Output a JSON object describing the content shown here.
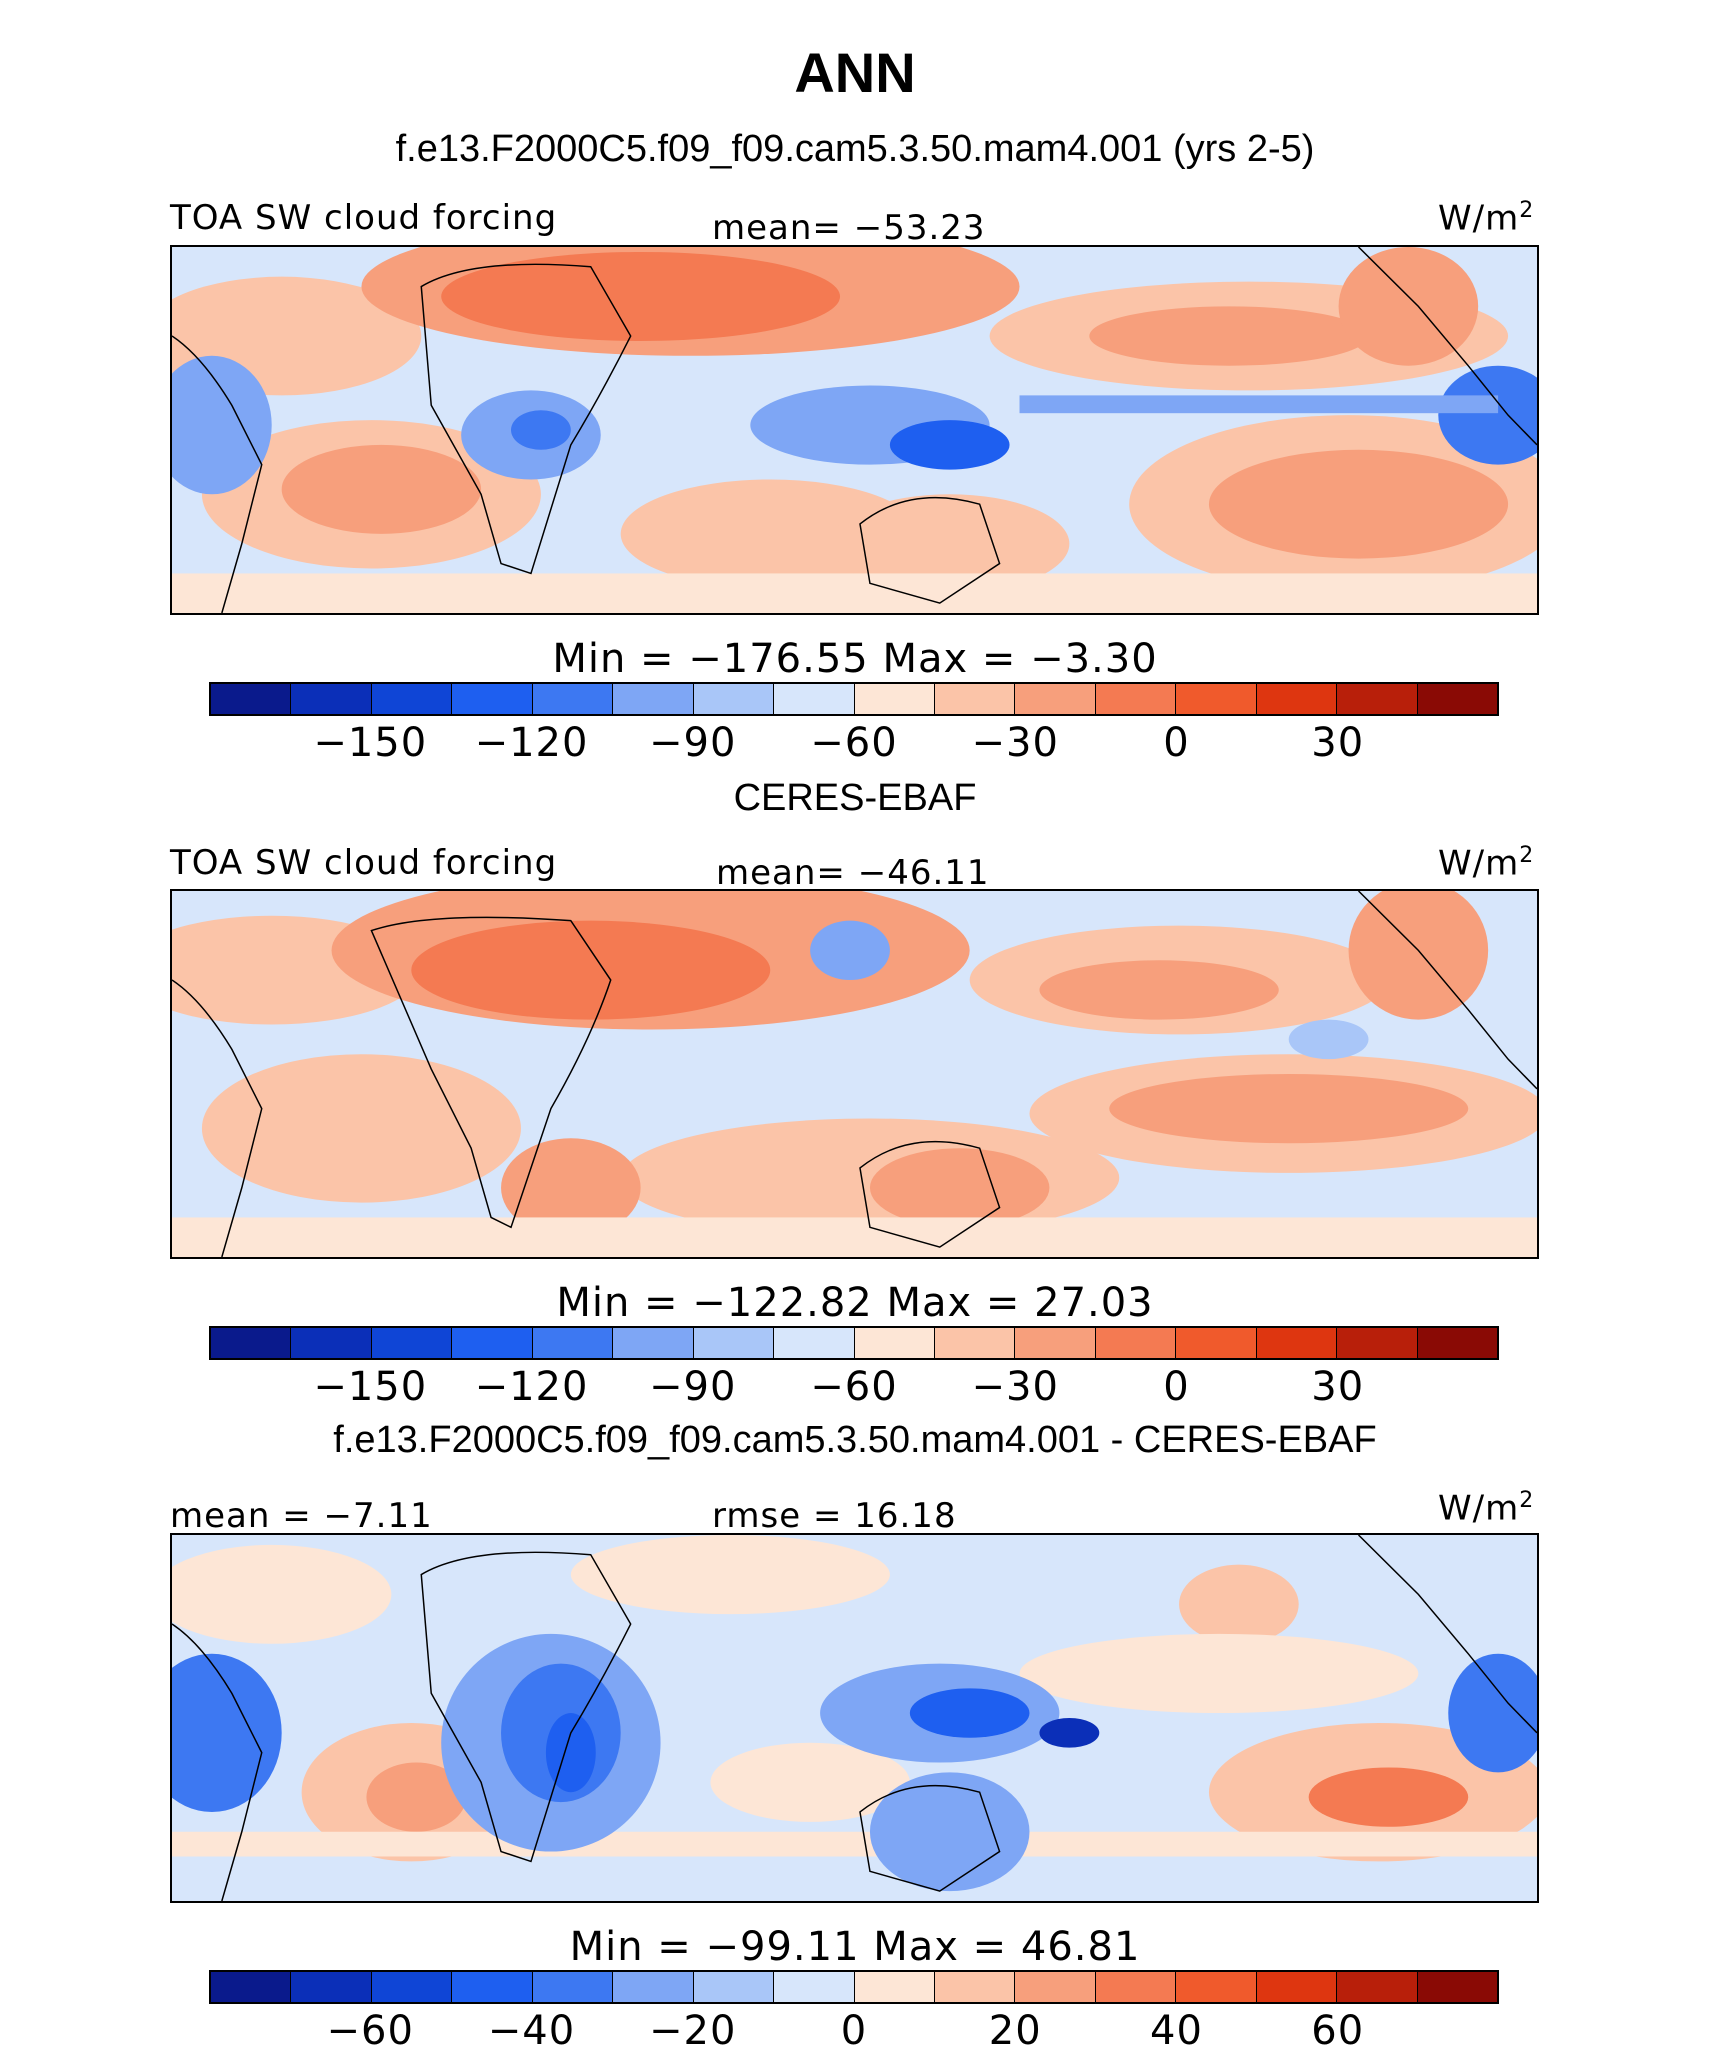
{
  "title": "ANN",
  "subtitle_top": "f.e13.F2000C5.f09_f09.cam5.3.50.mam4.001 (yrs 2-5)",
  "panels": [
    {
      "left_label": "TOA SW cloud forcing",
      "center_label": "mean= −53.23",
      "unit": "W/m",
      "unit_sup": "2",
      "stats": "Min  =  −176.55  Max  =   −3.30",
      "tick_labels": [
        "−150",
        "−120",
        "−90",
        "−60",
        "−30",
        "0",
        "30"
      ],
      "kind": "model"
    },
    {
      "heading": "CERES-EBAF",
      "left_label": "TOA SW cloud forcing",
      "center_label": "mean= −46.11",
      "unit": "W/m",
      "unit_sup": "2",
      "stats": "Min  =  −122.82  Max  =   27.03",
      "tick_labels": [
        "−150",
        "−120",
        "−90",
        "−60",
        "−30",
        "0",
        "30"
      ],
      "kind": "obs"
    },
    {
      "heading": "f.e13.F2000C5.f09_f09.cam5.3.50.mam4.001 - CERES-EBAF",
      "left_label": "mean =  −7.11",
      "center_label": "rmse =   16.18",
      "unit": "W/m",
      "unit_sup": "2",
      "stats": "Min  =  −99.11  Max  =   46.81",
      "tick_labels": [
        "−60",
        "−40",
        "−20",
        "0",
        "20",
        "40",
        "60"
      ],
      "kind": "diff"
    }
  ],
  "colorbar_colors": [
    "#0a1a8c",
    "#0b2fb8",
    "#0f45d6",
    "#1e5ff0",
    "#3d78f2",
    "#7ea6f5",
    "#a9c6f8",
    "#d7e6fb",
    "#fde6d6",
    "#fbc4a8",
    "#f79f7c",
    "#f47a52",
    "#f05a2c",
    "#de3610",
    "#b81f0a",
    "#8a0a05"
  ]
}
